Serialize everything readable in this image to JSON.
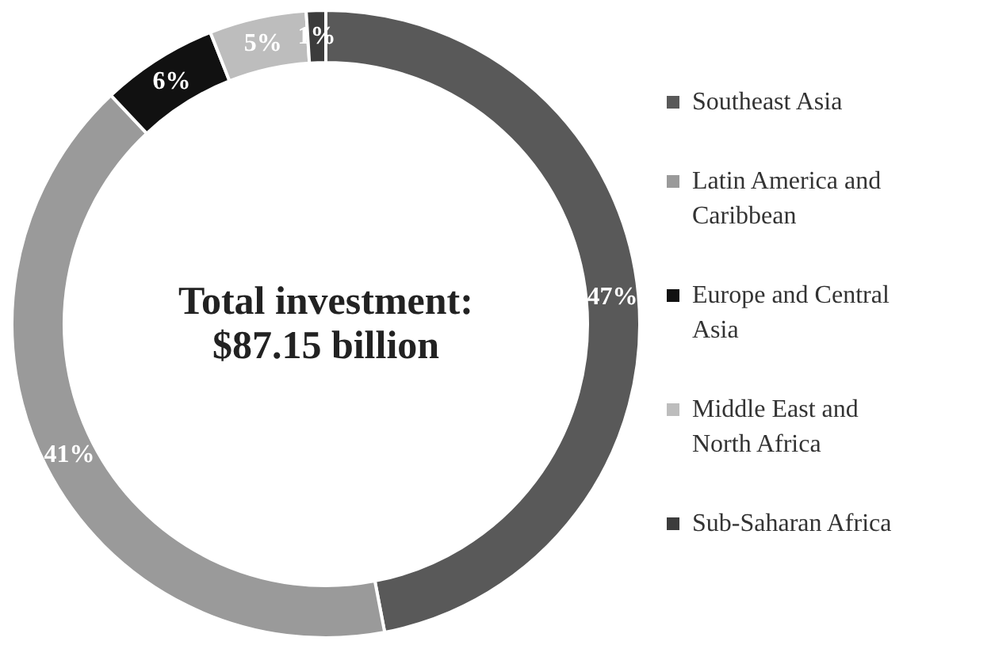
{
  "chart_data": {
    "type": "donut",
    "categories": [
      "Southeast Asia",
      "Latin America and Caribbean",
      "Europe and Central Asia",
      "Middle East and North Africa",
      "Sub-Saharan Africa"
    ],
    "values": [
      47,
      41,
      6,
      5,
      1
    ],
    "colors": [
      "#595959",
      "#9a9a9a",
      "#111111",
      "#bdbdbd",
      "#3c3c3c"
    ],
    "value_labels": [
      "47%",
      "41%",
      "6%",
      "5%",
      "1%"
    ],
    "legend": "right",
    "annotations": [
      "Total investment: $87.15 billion"
    ]
  }
}
